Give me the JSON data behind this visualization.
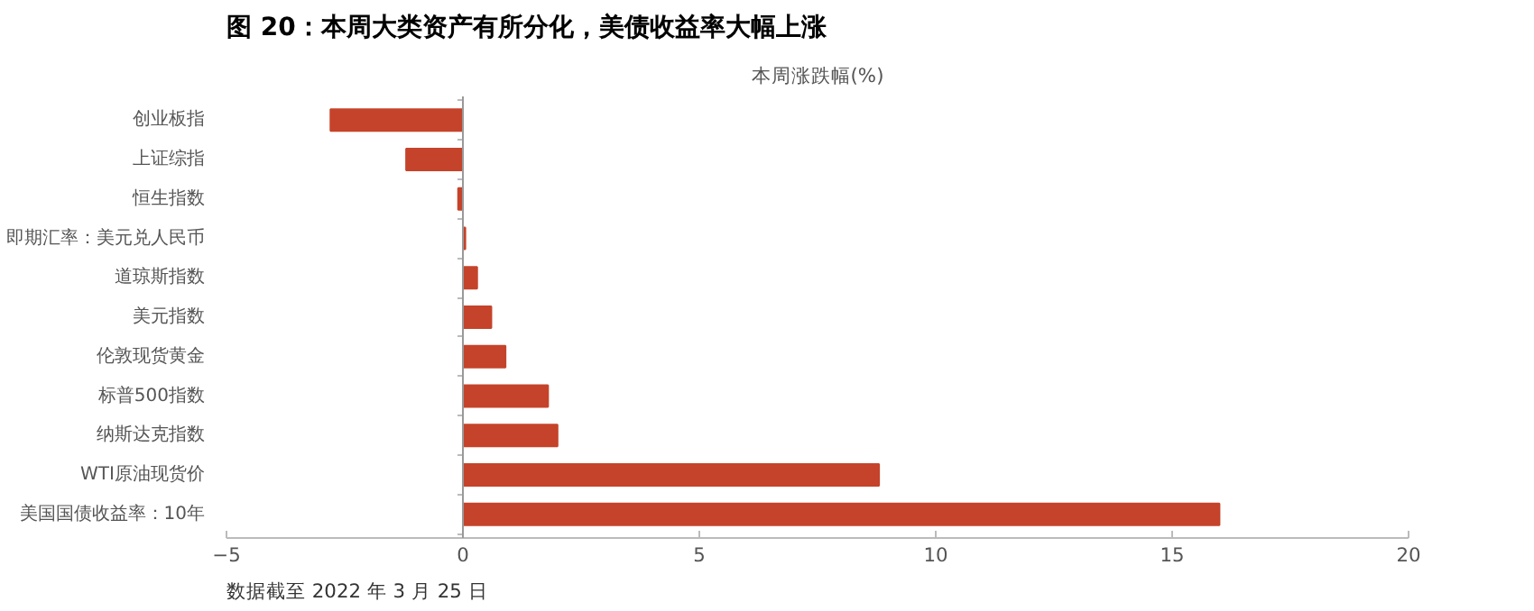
{
  "chart_data": {
    "type": "bar",
    "orientation": "horizontal",
    "title": "图 20：本周大类资产有所分化，美债收益率大幅上涨",
    "subtitle": "本周涨跌幅(%)",
    "categories": [
      "创业板指",
      "上证综指",
      "恒生指数",
      "即期汇率：美元兑人民币",
      "道琼斯指数",
      "美元指数",
      "伦敦现货黄金",
      "标普500指数",
      "纳斯达克指数",
      "WTI原油现货价",
      "美国国债收益率：10年"
    ],
    "values": [
      -2.8,
      -1.2,
      -0.1,
      0.05,
      0.3,
      0.6,
      0.9,
      1.8,
      2.0,
      8.8,
      16.0
    ],
    "color": "#c5432a",
    "xlim": [
      -5,
      20
    ],
    "xticks": [
      -5,
      0,
      5,
      10,
      15,
      20
    ],
    "grid": false,
    "ref_lines": [
      {
        "axis": "x",
        "value": 0,
        "color": "#999999"
      }
    ],
    "annotations": [
      "数据截至 2022 年 3 月 25 日"
    ]
  }
}
